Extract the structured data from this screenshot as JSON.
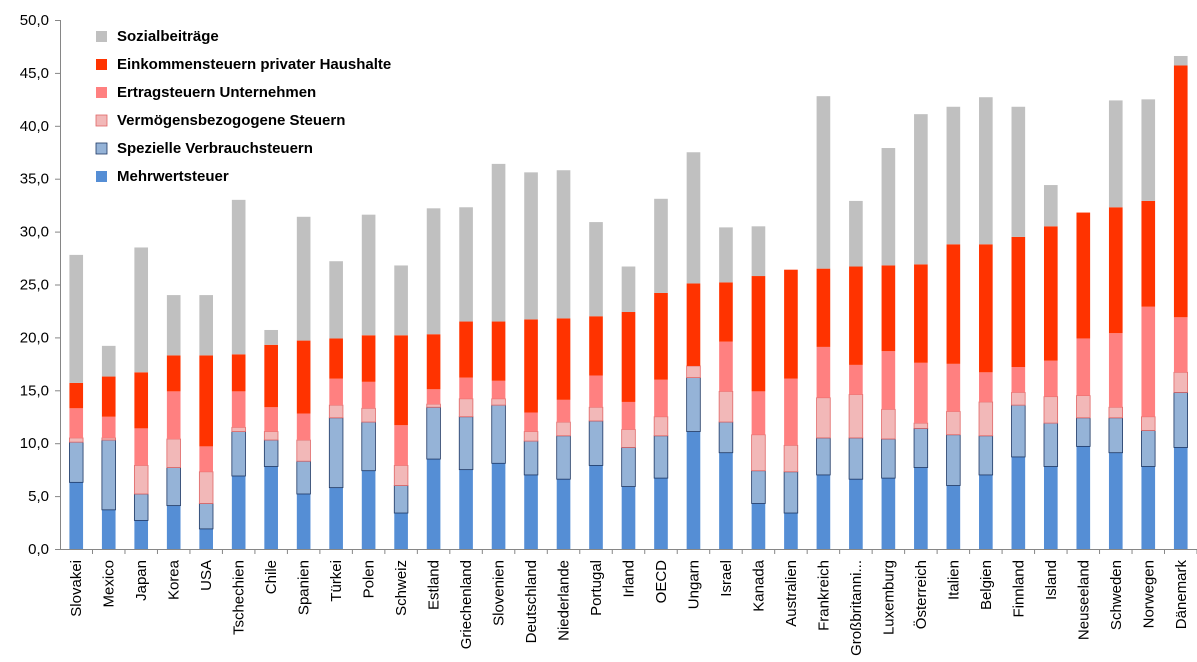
{
  "chart_data": {
    "type": "bar",
    "stacked": true,
    "title": "",
    "xlabel": "",
    "ylabel": "",
    "ylim": [
      0,
      50
    ],
    "yticks": [
      "0,0",
      "5,0",
      "10,0",
      "15,0",
      "20,0",
      "25,0",
      "30,0",
      "35,0",
      "40,0",
      "45,0",
      "50,0"
    ],
    "grid": false,
    "legend_position": "top-left",
    "categories": [
      "Slovakei",
      "Mexico",
      "Japan",
      "Korea",
      "USA",
      "Tschechien",
      "Chile",
      "Spanien",
      "Türkei",
      "Polen",
      "Schweiz",
      "Estland",
      "Griechenland",
      "Slovenien",
      "Deutschland",
      "Niederlande",
      "Portugal",
      "Irland",
      "OECD",
      "Ungarn",
      "Israel",
      "Kanada",
      "Australien",
      "Frankreich",
      "Großbritanni...",
      "Luxemburg",
      "Österreich",
      "Italien",
      "Belgien",
      "Finnland",
      "Island",
      "Neuseeland",
      "Schweden",
      "Norwegen",
      "Dänemark"
    ],
    "series": [
      {
        "name": "Mehrwertsteuer",
        "color": "#558ED5",
        "values": [
          6.3,
          3.7,
          2.7,
          4.1,
          1.9,
          6.9,
          7.8,
          5.2,
          5.8,
          7.4,
          3.4,
          8.5,
          7.5,
          8.1,
          7.0,
          6.6,
          7.9,
          5.9,
          6.7,
          11.1,
          9.1,
          4.3,
          3.4,
          7.0,
          6.6,
          6.7,
          7.7,
          6.0,
          7.0,
          8.7,
          7.8,
          9.7,
          9.1,
          7.8,
          9.6
        ]
      },
      {
        "name": "Spezielle Verbrauchsteuern",
        "color": "#95B3D7",
        "values": [
          3.8,
          6.6,
          2.5,
          3.6,
          2.4,
          4.2,
          2.5,
          3.1,
          6.6,
          4.6,
          2.6,
          4.9,
          5.0,
          5.5,
          3.2,
          4.1,
          4.2,
          3.7,
          4.0,
          5.1,
          2.9,
          3.1,
          3.9,
          3.5,
          3.9,
          3.7,
          3.7,
          4.8,
          3.7,
          4.9,
          4.1,
          2.7,
          3.3,
          3.4,
          5.2
        ]
      },
      {
        "name": "Vermögensbezogogene Steuern",
        "color": "#F2B8B8",
        "values": [
          0.4,
          0.2,
          2.7,
          2.7,
          3.0,
          0.4,
          0.8,
          2.0,
          1.2,
          1.3,
          1.9,
          0.3,
          1.7,
          0.6,
          0.9,
          1.3,
          1.3,
          1.7,
          1.8,
          1.1,
          2.9,
          3.4,
          2.5,
          3.8,
          4.1,
          2.8,
          0.5,
          2.2,
          3.2,
          1.2,
          2.5,
          2.1,
          1.0,
          1.3,
          1.9
        ]
      },
      {
        "name": "Ertragsteuern Unternehmen",
        "color": "#FF8080",
        "values": [
          2.8,
          2.0,
          3.5,
          4.5,
          2.4,
          3.4,
          2.3,
          2.5,
          2.5,
          2.5,
          3.8,
          1.4,
          2.0,
          1.7,
          1.8,
          2.1,
          3.0,
          2.6,
          3.5,
          0.0,
          4.7,
          4.1,
          6.3,
          4.8,
          2.8,
          5.5,
          5.7,
          4.5,
          2.8,
          2.4,
          3.4,
          5.4,
          7.0,
          10.4,
          5.2
        ]
      },
      {
        "name": "Einkommensteuern privater Haushalte",
        "color": "#FF3300",
        "values": [
          2.4,
          3.8,
          5.3,
          3.4,
          8.6,
          3.5,
          5.9,
          6.9,
          3.8,
          4.4,
          8.5,
          5.2,
          5.3,
          5.6,
          8.8,
          7.7,
          5.6,
          8.5,
          8.2,
          7.8,
          5.6,
          10.9,
          10.3,
          7.4,
          9.3,
          8.1,
          9.3,
          11.3,
          12.1,
          12.3,
          12.7,
          11.9,
          11.9,
          10.0,
          23.8
        ]
      },
      {
        "name": "Sozialbeiträge",
        "color": "#C0C0C0",
        "values": [
          12.1,
          2.9,
          11.8,
          5.7,
          5.7,
          14.6,
          1.4,
          11.7,
          7.3,
          11.4,
          6.6,
          11.9,
          10.8,
          14.9,
          13.9,
          14.0,
          8.9,
          4.3,
          8.9,
          12.4,
          5.2,
          4.7,
          0.0,
          16.3,
          6.2,
          11.1,
          14.2,
          13.0,
          13.9,
          12.3,
          3.9,
          0.0,
          10.1,
          9.6,
          0.9
        ]
      }
    ]
  }
}
